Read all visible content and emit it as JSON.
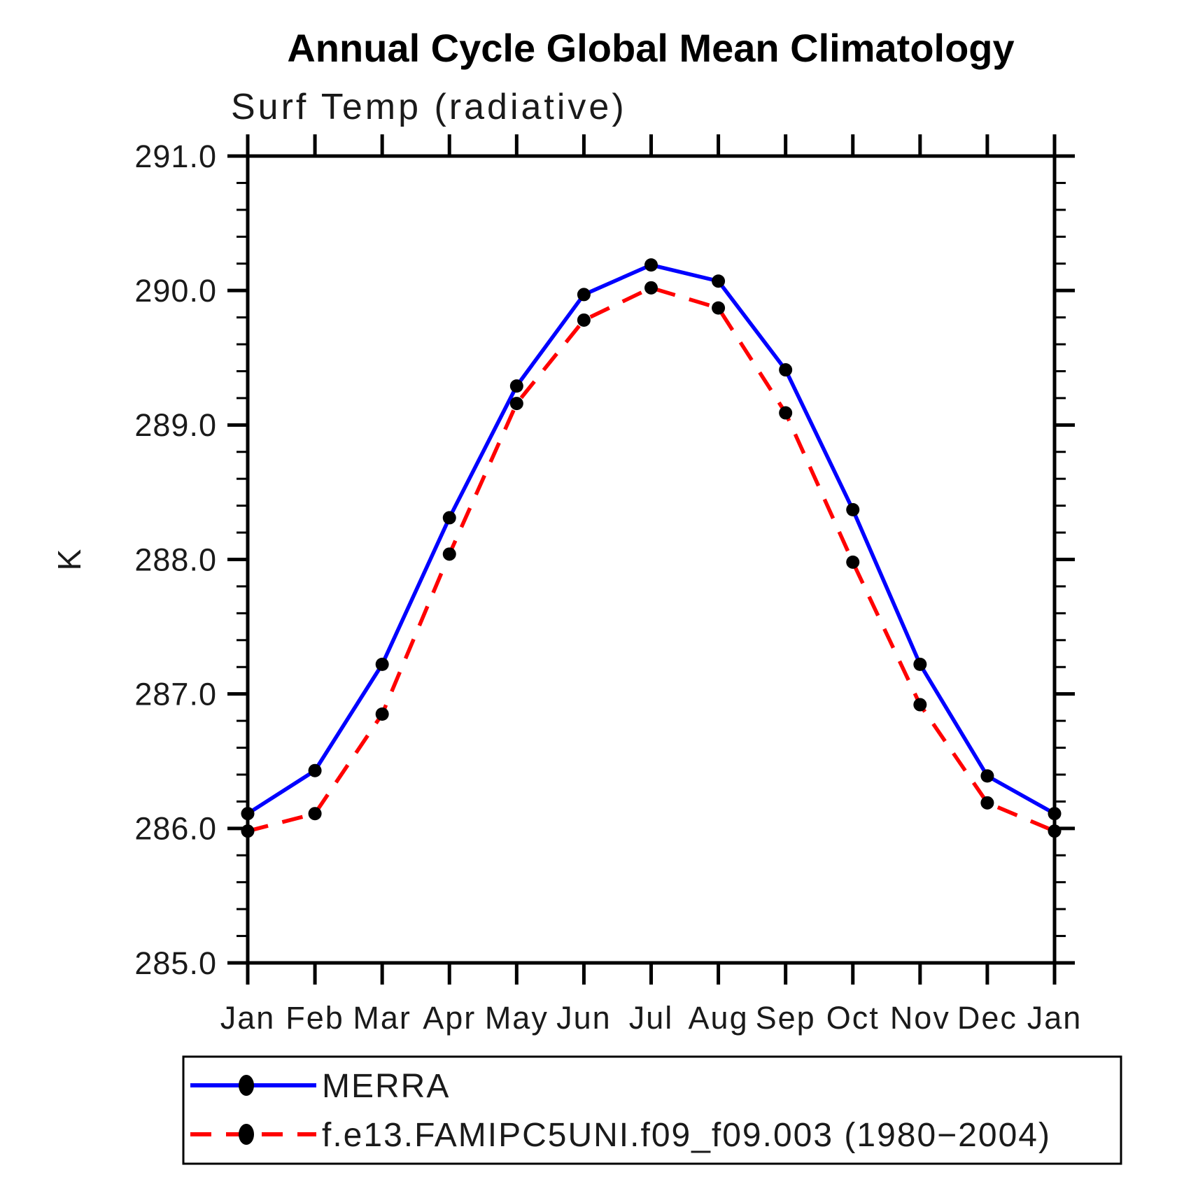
{
  "title": "Annual Cycle Global Mean Climatology",
  "subtitle": "Surf Temp (radiative)",
  "chart_data": {
    "type": "line",
    "x_categories": [
      "Jan",
      "Feb",
      "Mar",
      "Apr",
      "May",
      "Jun",
      "Jul",
      "Aug",
      "Sep",
      "Oct",
      "Nov",
      "Dec",
      "Jan"
    ],
    "xlabel": "",
    "ylabel": "K",
    "ylim": [
      285.0,
      291.0
    ],
    "y_major_tick_step": 1.0,
    "y_minor_tick_step": 0.2,
    "y_tick_labels": [
      "285.0",
      "286.0",
      "287.0",
      "288.0",
      "289.0",
      "290.0",
      "291.0"
    ],
    "grid": false,
    "legend_position": "bottom",
    "series": [
      {
        "name": "MERRA",
        "color": "#0000ff",
        "line_style": "solid",
        "marker": "filled-circle",
        "marker_color": "#000000",
        "values": [
          286.11,
          286.43,
          287.22,
          288.31,
          289.29,
          289.97,
          290.19,
          290.07,
          289.41,
          288.37,
          287.22,
          286.39,
          286.11
        ]
      },
      {
        "name": "f.e13.FAMIPC5UNI.f09_f09.003 (1980−2004)",
        "color": "#ff0000",
        "line_style": "dashed",
        "marker": "filled-circle",
        "marker_color": "#000000",
        "values": [
          285.98,
          286.11,
          286.85,
          288.04,
          289.16,
          289.78,
          290.02,
          289.87,
          289.09,
          287.98,
          286.92,
          286.19,
          285.98
        ]
      }
    ]
  },
  "colors": {
    "axis": "#000000",
    "background": "#ffffff",
    "merra_line": "#0000ff",
    "model_line": "#ff0000",
    "marker": "#000000"
  }
}
